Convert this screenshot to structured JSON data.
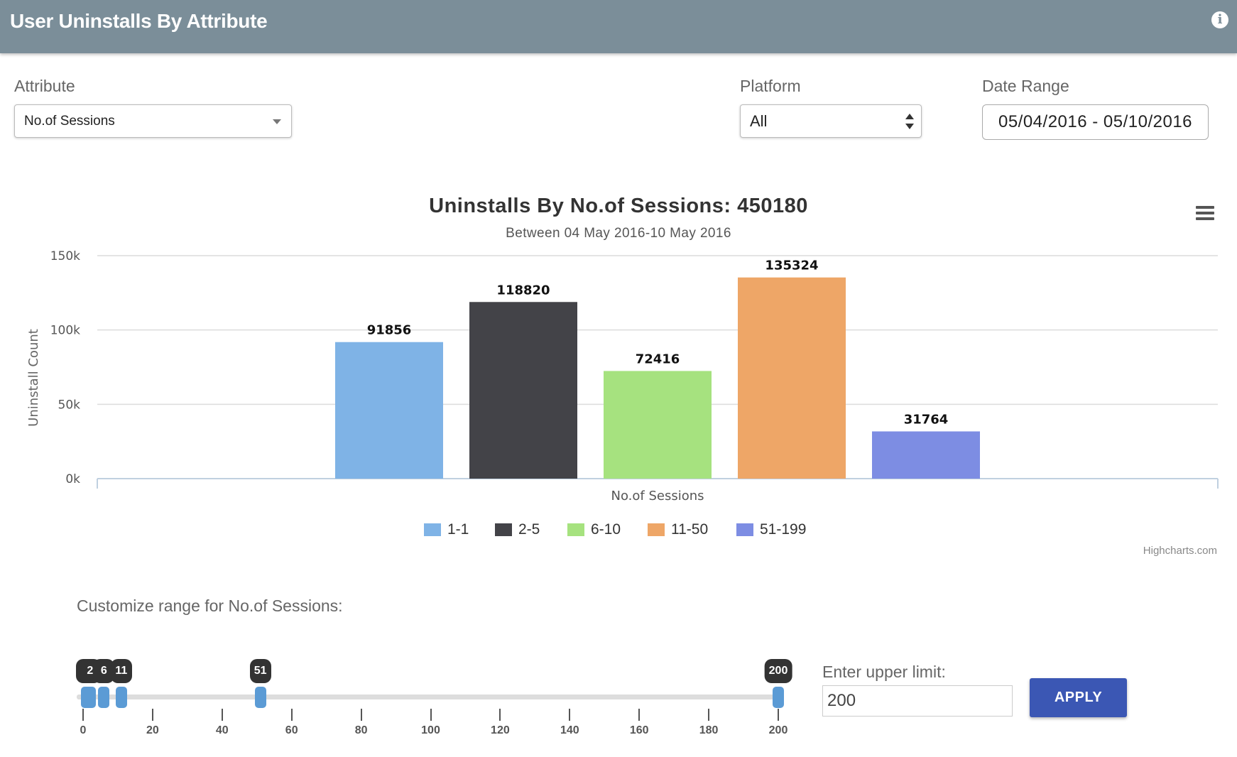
{
  "header": {
    "title": "User Uninstalls By Attribute",
    "info_icon": "info-icon"
  },
  "filters": {
    "attribute": {
      "label": "Attribute",
      "value": "No.of Sessions"
    },
    "platform": {
      "label": "Platform",
      "value": "All"
    },
    "date_range": {
      "label": "Date Range",
      "value": "05/04/2016 - 05/10/2016"
    }
  },
  "chart_menu_icon": "menu-icon",
  "chart_data": {
    "type": "bar",
    "title": "Uninstalls By No.of Sessions: 450180",
    "subtitle": "Between 04 May 2016-10 May 2016",
    "xlabel": "No.of Sessions",
    "ylabel": "Uninstall Count",
    "ylim": [
      0,
      150000
    ],
    "yticks": [
      "0k",
      "50k",
      "100k",
      "150k"
    ],
    "categories": [
      "1-1",
      "2-5",
      "6-10",
      "11-50",
      "51-199"
    ],
    "values": [
      91856,
      118820,
      72416,
      135324,
      31764
    ],
    "colors": [
      "#7fb3e6",
      "#434348",
      "#a6e27f",
      "#eea667",
      "#7d8de3"
    ],
    "grid": true,
    "legend": "bottom-center",
    "credits": "Highcharts.com"
  },
  "range": {
    "label": "Customize range for No.of Sessions:",
    "min": 0,
    "max": 200,
    "ticks": [
      0,
      20,
      40,
      60,
      80,
      100,
      120,
      140,
      160,
      180,
      200
    ],
    "handles": [
      1,
      2,
      6,
      11,
      51,
      200
    ],
    "upper_limit_label": "Enter upper limit:",
    "upper_limit_value": "200",
    "apply_label": "APPLY"
  }
}
